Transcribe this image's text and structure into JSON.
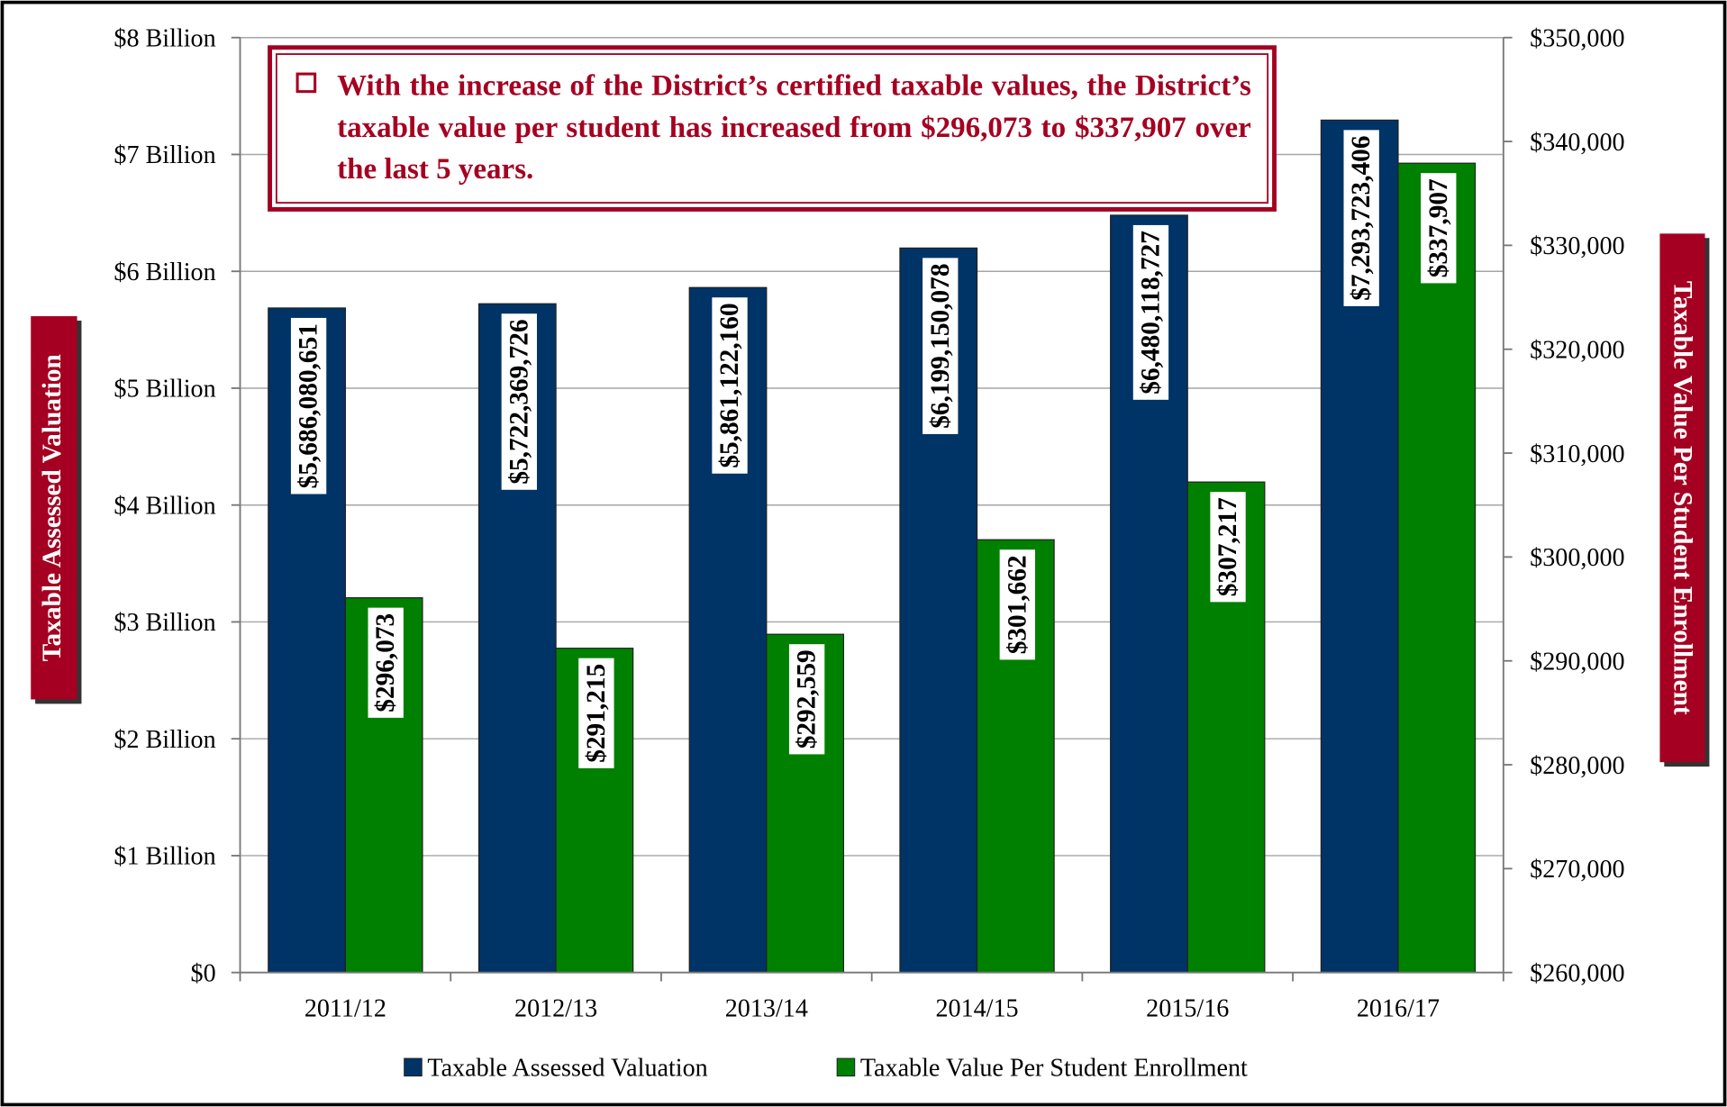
{
  "chart_data": {
    "type": "bar",
    "annotation": "With the increase of the District’s certified taxable values, the District’s taxable value per student has increased from $296,073 to $337,907 over the last 5 years.",
    "y_label": "Taxable Assessed Valuation",
    "y2_label": "Taxable Value Per Student Enrollment",
    "categories": [
      "2011/12",
      "2012/13",
      "2013/14",
      "2014/15",
      "2015/16",
      "2016/17"
    ],
    "series": [
      {
        "name": "Taxable Assessed Valuation",
        "color": "#003366",
        "values": [
          5686080651,
          5722369726,
          5861122160,
          6199150078,
          6480118727,
          7293723406
        ],
        "value_labels": [
          "$5,686,080,651",
          "$5,722,369,726",
          "$5,861,122,160",
          "$6,199,150,078",
          "$6,480,118,727",
          "$7,293,723,406"
        ]
      },
      {
        "name": "Taxable Value Per Student Enrollment",
        "color": "#008000",
        "axis": "y2",
        "values": [
          296073,
          291215,
          292559,
          301662,
          307217,
          337907
        ],
        "value_labels": [
          "$296,073",
          "$291,215",
          "$292,559",
          "$301,662",
          "$307,217",
          "$337,907"
        ]
      }
    ],
    "ylim": [
      0,
      8000000000
    ],
    "yticks": [
      {
        "value": 0,
        "label": "$0"
      },
      {
        "value": 1000000000,
        "label": "$1 Billion"
      },
      {
        "value": 2000000000,
        "label": "$2 Billion"
      },
      {
        "value": 3000000000,
        "label": "$3 Billion"
      },
      {
        "value": 4000000000,
        "label": "$4 Billion"
      },
      {
        "value": 5000000000,
        "label": "$5 Billion"
      },
      {
        "value": 6000000000,
        "label": "$6 Billion"
      },
      {
        "value": 7000000000,
        "label": "$7 Billion"
      },
      {
        "value": 8000000000,
        "label": "$8 Billion"
      }
    ],
    "y2lim": [
      260000,
      350000
    ],
    "y2ticks": [
      {
        "value": 260000,
        "label": "$260,000"
      },
      {
        "value": 270000,
        "label": "$270,000"
      },
      {
        "value": 280000,
        "label": "$280,000"
      },
      {
        "value": 290000,
        "label": "$290,000"
      },
      {
        "value": 300000,
        "label": "$300,000"
      },
      {
        "value": 310000,
        "label": "$310,000"
      },
      {
        "value": 320000,
        "label": "$320,000"
      },
      {
        "value": 330000,
        "label": "$330,000"
      },
      {
        "value": 340000,
        "label": "$340,000"
      },
      {
        "value": 350000,
        "label": "$350,000"
      }
    ],
    "grid": true,
    "legend": "bottom"
  }
}
